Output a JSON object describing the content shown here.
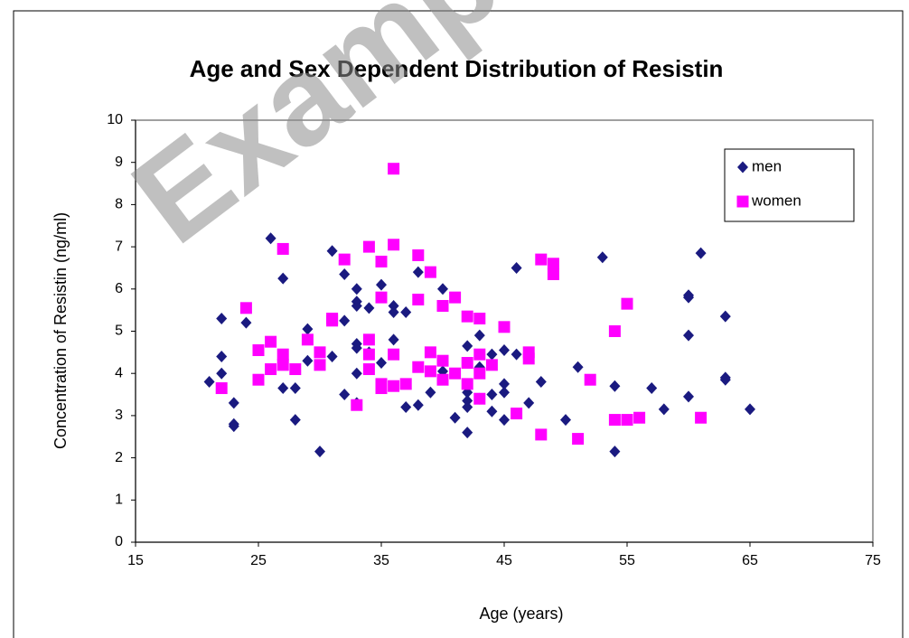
{
  "chart_data": {
    "type": "scatter",
    "title": "Age and Sex Dependent Distribution of Resistin",
    "xlabel": "Age (years)",
    "ylabel": "Concentration of Resistin (ng/ml)",
    "watermark": "Example",
    "xlim": [
      15,
      75
    ],
    "xticks": [
      15,
      25,
      35,
      45,
      55,
      65,
      75
    ],
    "ylim": [
      0,
      10
    ],
    "yticks": [
      0,
      1,
      2,
      3,
      4,
      5,
      6,
      7,
      8,
      9,
      10
    ],
    "legend": "upper right",
    "series": [
      {
        "name": "men",
        "color": "#1a1a80",
        "marker": "diamond",
        "x": [
          21,
          22,
          22,
          22,
          23,
          23,
          23,
          24,
          26,
          27,
          27,
          28,
          28,
          29,
          29,
          30,
          31,
          31,
          32,
          32,
          32,
          33,
          33,
          33,
          33,
          33,
          33,
          33,
          34,
          34,
          35,
          35,
          36,
          36,
          36,
          37,
          37,
          38,
          38,
          39,
          40,
          40,
          41,
          42,
          42,
          42,
          42,
          42,
          43,
          43,
          43,
          44,
          44,
          44,
          45,
          45,
          45,
          45,
          46,
          46,
          47,
          48,
          50,
          51,
          53,
          54,
          54,
          57,
          58,
          60,
          60,
          60,
          60,
          61,
          63,
          63,
          63,
          65
        ],
        "values": [
          3.8,
          5.3,
          4.4,
          4.0,
          3.3,
          2.8,
          2.75,
          5.2,
          7.2,
          6.25,
          3.65,
          3.65,
          2.9,
          5.05,
          4.3,
          2.15,
          6.9,
          4.4,
          6.35,
          5.25,
          3.5,
          6.0,
          5.7,
          5.6,
          4.7,
          4.6,
          4.0,
          3.3,
          5.55,
          4.5,
          6.1,
          4.25,
          5.6,
          5.45,
          4.8,
          5.45,
          3.2,
          6.4,
          3.25,
          3.55,
          6.0,
          4.05,
          2.95,
          4.65,
          3.55,
          3.35,
          3.2,
          2.6,
          4.9,
          4.15,
          3.4,
          4.45,
          3.5,
          3.1,
          4.55,
          3.75,
          3.55,
          2.9,
          6.5,
          4.45,
          3.3,
          3.8,
          2.9,
          4.15,
          6.75,
          3.7,
          2.15,
          3.65,
          3.15,
          5.85,
          5.8,
          4.9,
          3.45,
          6.85,
          5.35,
          3.9,
          3.85,
          3.15
        ]
      },
      {
        "name": "women",
        "color": "#ff00ff",
        "marker": "square",
        "x": [
          22,
          24,
          25,
          25,
          26,
          26,
          27,
          27,
          27,
          28,
          29,
          30,
          30,
          31,
          31,
          32,
          33,
          34,
          34,
          34,
          34,
          35,
          35,
          35,
          35,
          36,
          36,
          36,
          36,
          37,
          38,
          38,
          38,
          39,
          39,
          39,
          40,
          40,
          40,
          41,
          41,
          42,
          42,
          42,
          43,
          43,
          43,
          43,
          44,
          45,
          46,
          47,
          47,
          48,
          48,
          49,
          49,
          51,
          52,
          54,
          54,
          55,
          55,
          56,
          61
        ],
        "values": [
          3.65,
          5.55,
          4.55,
          3.85,
          4.75,
          4.1,
          6.95,
          4.45,
          4.2,
          4.1,
          4.8,
          4.5,
          4.2,
          5.3,
          5.25,
          6.7,
          3.25,
          7.0,
          4.8,
          4.45,
          4.1,
          6.65,
          5.8,
          3.75,
          3.65,
          8.85,
          7.05,
          4.45,
          3.7,
          3.75,
          6.8,
          5.75,
          4.15,
          6.4,
          4.5,
          4.05,
          5.6,
          4.3,
          3.85,
          5.8,
          4.0,
          5.35,
          4.25,
          3.75,
          5.3,
          4.45,
          4.0,
          3.4,
          4.2,
          5.1,
          3.05,
          4.5,
          4.35,
          6.7,
          2.55,
          6.6,
          6.35,
          2.45,
          3.85,
          5.0,
          2.9,
          5.65,
          2.9,
          2.95,
          2.95
        ]
      }
    ]
  }
}
